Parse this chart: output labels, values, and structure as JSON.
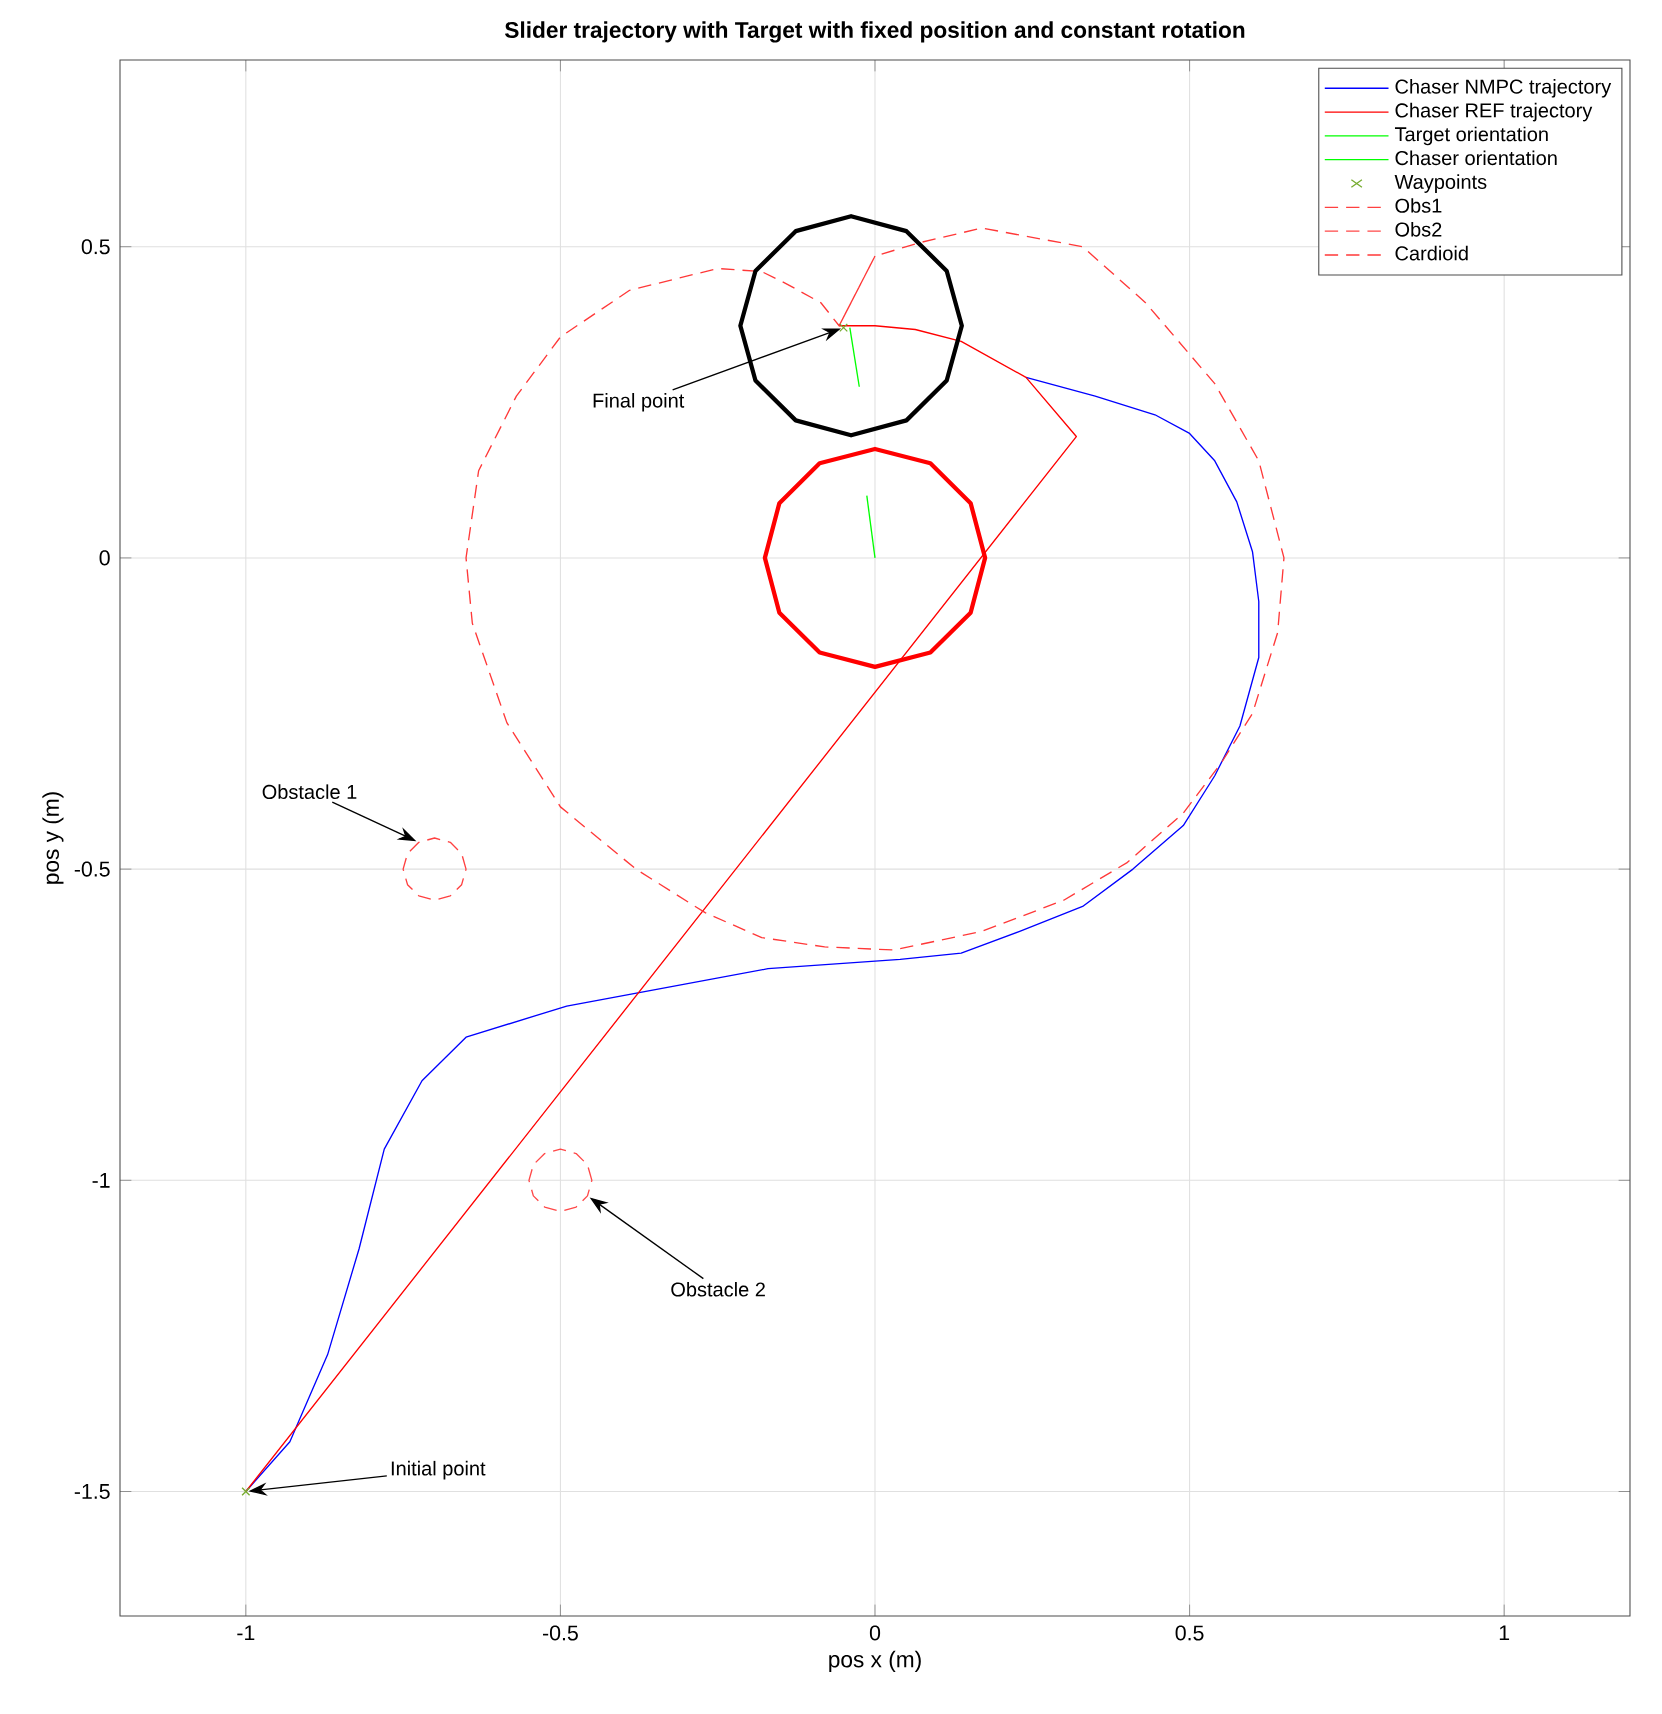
{
  "chart_data": {
    "type": "line",
    "title": "Slider trajectory with Target with fixed position and constant rotation",
    "xlabel": "pos x (m)",
    "ylabel": "pos y (m)",
    "xlim": [
      -1.2,
      1.2
    ],
    "ylim": [
      -1.7,
      0.8
    ],
    "xticks": [
      -1,
      -0.5,
      0,
      0.5,
      1
    ],
    "yticks": [
      -1.5,
      -1,
      -0.5,
      0,
      0.5
    ],
    "grid": true,
    "legend": "top right",
    "series": [
      {
        "name": "Chaser NMPC trajectory",
        "color": "#0000ff",
        "x": [
          -1.0,
          -0.93,
          -0.87,
          -0.82,
          -0.78,
          -0.72,
          -0.65,
          -0.49,
          -0.33,
          -0.17,
          0.04,
          0.137,
          0.23,
          0.33,
          0.41,
          0.49,
          0.54,
          0.58,
          0.61,
          0.61,
          0.6,
          0.575,
          0.54,
          0.5,
          0.445,
          0.35,
          0.24
        ],
        "values": [
          -1.5,
          -1.42,
          -1.28,
          -1.11,
          -0.95,
          -0.84,
          -0.77,
          -0.72,
          -0.69,
          -0.66,
          -0.645,
          -0.635,
          -0.6,
          -0.56,
          -0.5,
          -0.43,
          -0.35,
          -0.27,
          -0.16,
          -0.07,
          0.01,
          0.09,
          0.156,
          0.2,
          0.23,
          0.26,
          0.29
        ]
      },
      {
        "name": "Chaser REF trajectory",
        "color": "#ff0000",
        "x": [
          -1.0,
          0.32,
          0.24,
          0.137,
          0.064,
          0.0,
          -0.045,
          -0.057
        ],
        "values": [
          -1.5,
          0.195,
          0.29,
          0.348,
          0.367,
          0.373,
          0.373,
          0.373
        ]
      },
      {
        "name": "Target orientation",
        "color": "#00ff00",
        "x": [
          0.0,
          -0.013
        ],
        "values": [
          0.0,
          0.1
        ]
      },
      {
        "name": "Chaser orientation",
        "color": "#00ff00",
        "x": [
          -0.04,
          -0.025
        ],
        "values": [
          0.37,
          0.275
        ]
      },
      {
        "name": "Waypoints",
        "type": "scatter",
        "marker": "cross",
        "color": "#77ac30",
        "x": [
          -1.0,
          -0.05
        ],
        "values": [
          -1.5,
          0.37
        ]
      },
      {
        "name": "Obs1",
        "color": "#ff4040",
        "line_style": "dashed",
        "x": [
          -0.65,
          -0.657,
          -0.675,
          -0.7,
          -0.725,
          -0.743,
          -0.75,
          -0.743,
          -0.725,
          -0.7,
          -0.675,
          -0.657,
          -0.65
        ],
        "values": [
          -0.5,
          -0.475,
          -0.457,
          -0.45,
          -0.457,
          -0.475,
          -0.5,
          -0.525,
          -0.543,
          -0.55,
          -0.543,
          -0.525,
          -0.5
        ]
      },
      {
        "name": "Obs2",
        "color": "#ff4848",
        "line_style": "dashed",
        "x": [
          -0.45,
          -0.457,
          -0.475,
          -0.5,
          -0.525,
          -0.543,
          -0.55,
          -0.543,
          -0.525,
          -0.5,
          -0.475,
          -0.457,
          -0.45
        ],
        "values": [
          -1.0,
          -0.975,
          -0.957,
          -0.95,
          -0.957,
          -0.975,
          -1.0,
          -1.025,
          -1.043,
          -1.05,
          -1.043,
          -1.025,
          -1.0
        ]
      },
      {
        "name": "Cardioid",
        "color": "#ff3838",
        "line_style": "dashed",
        "x": [
          -0.057,
          0.0,
          0.073,
          0.17,
          0.33,
          0.43,
          0.54,
          0.61,
          0.65,
          0.64,
          0.6,
          0.55,
          0.49,
          0.4,
          0.3,
          0.17,
          0.03,
          -0.08,
          -0.18,
          -0.27,
          -0.38,
          -0.5,
          -0.585,
          -0.64,
          -0.65,
          -0.63,
          -0.57,
          -0.5,
          -0.39,
          -0.25,
          -0.18,
          -0.14,
          -0.086,
          -0.057
        ],
        "values": [
          0.373,
          0.485,
          0.507,
          0.53,
          0.5,
          0.41,
          0.28,
          0.156,
          0.0,
          -0.12,
          -0.25,
          -0.33,
          -0.41,
          -0.49,
          -0.55,
          -0.6,
          -0.63,
          -0.625,
          -0.61,
          -0.57,
          -0.5,
          -0.4,
          -0.265,
          -0.105,
          0.0,
          0.14,
          0.26,
          0.355,
          0.43,
          0.465,
          0.46,
          0.44,
          0.41,
          0.373
        ]
      },
      {
        "color": "#000000",
        "x": [
          0.138,
          0.114,
          0.05,
          -0.038,
          -0.126,
          -0.19,
          -0.214,
          -0.19,
          -0.126,
          -0.038,
          0.05,
          0.114,
          0.138
        ],
        "values": [
          0.373,
          0.461,
          0.525,
          0.549,
          0.525,
          0.461,
          0.373,
          0.285,
          0.221,
          0.197,
          0.221,
          0.285,
          0.373
        ]
      },
      {
        "color": "#ff0000",
        "x": [
          0.175,
          0.152,
          0.088,
          0.0,
          -0.088,
          -0.152,
          -0.175,
          -0.152,
          -0.088,
          0.0,
          0.088,
          0.152,
          0.175
        ],
        "values": [
          0.0,
          0.088,
          0.152,
          0.175,
          0.152,
          0.088,
          0.0,
          -0.088,
          -0.152,
          -0.175,
          -0.152,
          -0.088,
          0.0
        ]
      }
    ],
    "annotations": [
      {
        "text": "Final point",
        "x": -0.05,
        "y": 0.37
      },
      {
        "text": "Obstacle 1",
        "x": -0.725,
        "y": -0.457
      },
      {
        "text": "Obstacle 2",
        "x": -0.457,
        "y": -1.025
      },
      {
        "text": "Initial point",
        "x": -1.0,
        "y": -1.5
      }
    ]
  }
}
